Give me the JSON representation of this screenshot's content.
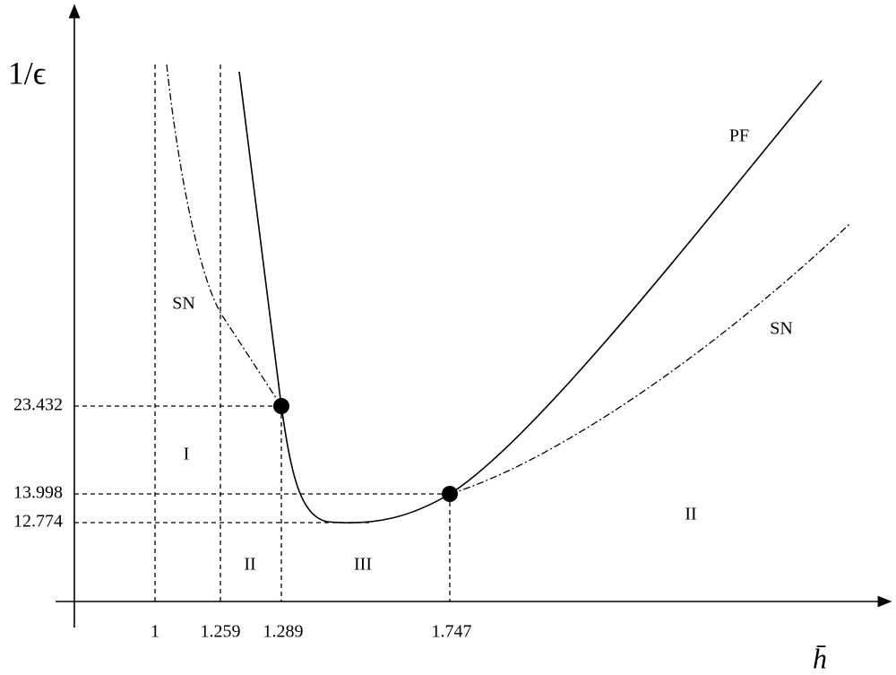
{
  "axes": {
    "y_label": "1/ϵ",
    "x_label": "h̄"
  },
  "x_ticks": [
    "1",
    "1.259",
    "1.289",
    "1.747"
  ],
  "y_ticks": [
    "23.432",
    "13.998",
    "12.774"
  ],
  "curves": {
    "pf": "PF",
    "sn_left": "SN",
    "sn_right": "SN"
  },
  "regions": [
    "I",
    "II",
    "III",
    "II"
  ]
}
